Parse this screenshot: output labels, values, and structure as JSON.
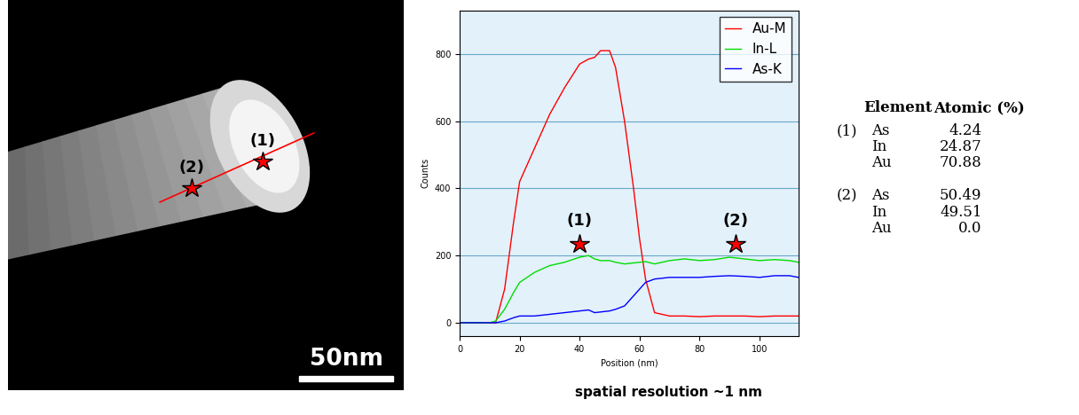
{
  "image": {
    "labels": [
      "(1)",
      "(2)"
    ],
    "scale_bar": "50nm"
  },
  "chart_data": {
    "type": "line",
    "xlabel": "Position (nm)",
    "ylabel": "Counts",
    "x": [
      0,
      5,
      10,
      12,
      15,
      18,
      20,
      25,
      30,
      35,
      40,
      43,
      45,
      47,
      50,
      52,
      55,
      58,
      60,
      62,
      65,
      70,
      75,
      80,
      85,
      90,
      95,
      100,
      105,
      110,
      113
    ],
    "series": [
      {
        "name": "Au-M",
        "color": "#ff0000",
        "values": [
          0,
          0,
          0,
          0,
          100,
          300,
          420,
          520,
          620,
          700,
          770,
          785,
          790,
          810,
          810,
          760,
          600,
          400,
          250,
          130,
          30,
          20,
          20,
          18,
          20,
          20,
          20,
          18,
          20,
          20,
          20
        ]
      },
      {
        "name": "In-L",
        "color": "#00dd00",
        "values": [
          0,
          0,
          0,
          5,
          40,
          90,
          120,
          150,
          170,
          180,
          195,
          200,
          190,
          185,
          185,
          180,
          175,
          178,
          180,
          182,
          175,
          185,
          190,
          185,
          188,
          195,
          190,
          185,
          188,
          185,
          180
        ]
      },
      {
        "name": "As-K",
        "color": "#0000ff",
        "values": [
          0,
          0,
          0,
          0,
          5,
          15,
          20,
          20,
          25,
          30,
          35,
          38,
          30,
          32,
          35,
          40,
          50,
          80,
          100,
          120,
          130,
          135,
          135,
          135,
          138,
          140,
          138,
          135,
          140,
          140,
          135
        ]
      }
    ],
    "xlim": [
      0,
      113
    ],
    "xticks": [
      0,
      20,
      40,
      60,
      80,
      100
    ],
    "ylim": [
      -40,
      930
    ],
    "yticks": [
      0,
      200,
      400,
      600,
      800
    ],
    "grid": true,
    "legend": "upper right",
    "annotations": [
      {
        "text": "(1)",
        "x": 40,
        "y": 235
      },
      {
        "text": "(2)",
        "x": 92,
        "y": 235
      }
    ]
  },
  "caption": "spatial resolution ~1 nm",
  "table": {
    "header": [
      "Element",
      "Atomic (%)"
    ],
    "groups": [
      {
        "point": "(1)",
        "rows": [
          [
            "As",
            4.24
          ],
          [
            "In",
            24.87
          ],
          [
            "Au",
            70.88
          ]
        ]
      },
      {
        "point": "(2)",
        "rows": [
          [
            "As",
            50.49
          ],
          [
            "In",
            49.51
          ],
          [
            "Au",
            0.0
          ]
        ]
      }
    ]
  }
}
